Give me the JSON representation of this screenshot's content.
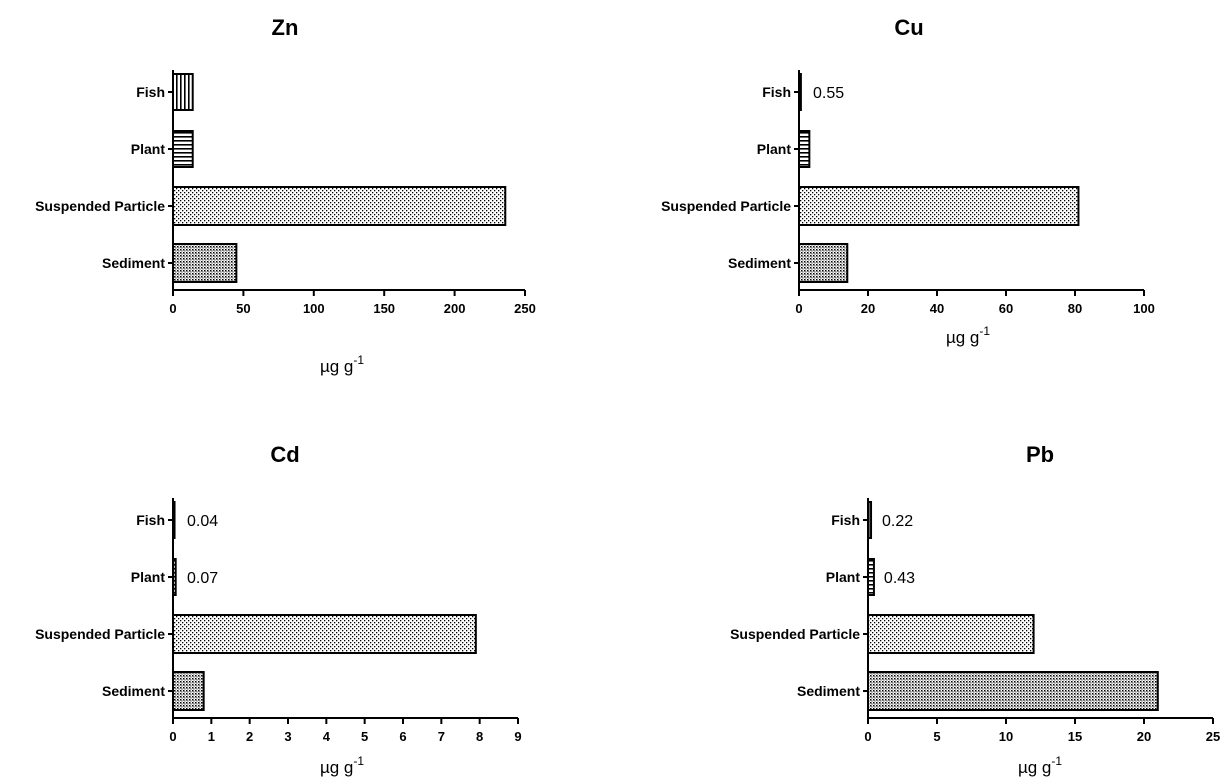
{
  "chart_data": [
    {
      "type": "bar",
      "orientation": "horizontal",
      "title": "Zn",
      "categories": [
        "Fish",
        "Plant",
        "Suspended Particle",
        "Sediment"
      ],
      "values": [
        14,
        14,
        236,
        45
      ],
      "data_labels": [
        "",
        "",
        "",
        ""
      ],
      "xlabel": "µg g",
      "xlabel_sup": "-1",
      "xlim": [
        0,
        250
      ],
      "xticks": [
        "0",
        "50",
        "100",
        "150",
        "200",
        "250"
      ],
      "patterns": [
        "vstripes",
        "hstripes",
        "dots",
        "dense-dots"
      ],
      "grid": false
    },
    {
      "type": "bar",
      "orientation": "horizontal",
      "title": "Cu",
      "categories": [
        "Fish",
        "Plant",
        "Suspended Particle",
        "Sediment"
      ],
      "values": [
        0.55,
        3,
        81,
        14
      ],
      "data_labels": [
        "0.55",
        "",
        "",
        ""
      ],
      "xlabel": "µg g",
      "xlabel_sup": "-1",
      "xlim": [
        0,
        100
      ],
      "xticks": [
        "0",
        "20",
        "40",
        "60",
        "80",
        "100"
      ],
      "patterns": [
        "vstripes",
        "hstripes",
        "dots",
        "dense-dots"
      ],
      "grid": false
    },
    {
      "type": "bar",
      "orientation": "horizontal",
      "title": "Cd",
      "categories": [
        "Fish",
        "Plant",
        "Suspended Particle",
        "Sediment"
      ],
      "values": [
        0.04,
        0.07,
        7.9,
        0.8
      ],
      "data_labels": [
        "0.04",
        "0.07",
        "",
        ""
      ],
      "xlabel": "µg g",
      "xlabel_sup": "-1",
      "xlim": [
        0,
        9
      ],
      "xticks": [
        "0",
        "1",
        "2",
        "3",
        "4",
        "5",
        "6",
        "7",
        "8",
        "9"
      ],
      "patterns": [
        "vstripes",
        "hstripes",
        "dots",
        "dense-dots"
      ],
      "grid": false
    },
    {
      "type": "bar",
      "orientation": "horizontal",
      "title": "Pb",
      "categories": [
        "Fish",
        "Plant",
        "Suspended Particle",
        "Sediment"
      ],
      "values": [
        0.22,
        0.43,
        12,
        21
      ],
      "data_labels": [
        "0.22",
        "0.43",
        "",
        ""
      ],
      "xlabel": "µg g",
      "xlabel_sup": "-1",
      "xlim": [
        0,
        25
      ],
      "xticks": [
        "0",
        "5",
        "10",
        "15",
        "20",
        "25"
      ],
      "patterns": [
        "vstripes",
        "hstripes",
        "dots",
        "dense-dots"
      ],
      "grid": false
    }
  ]
}
